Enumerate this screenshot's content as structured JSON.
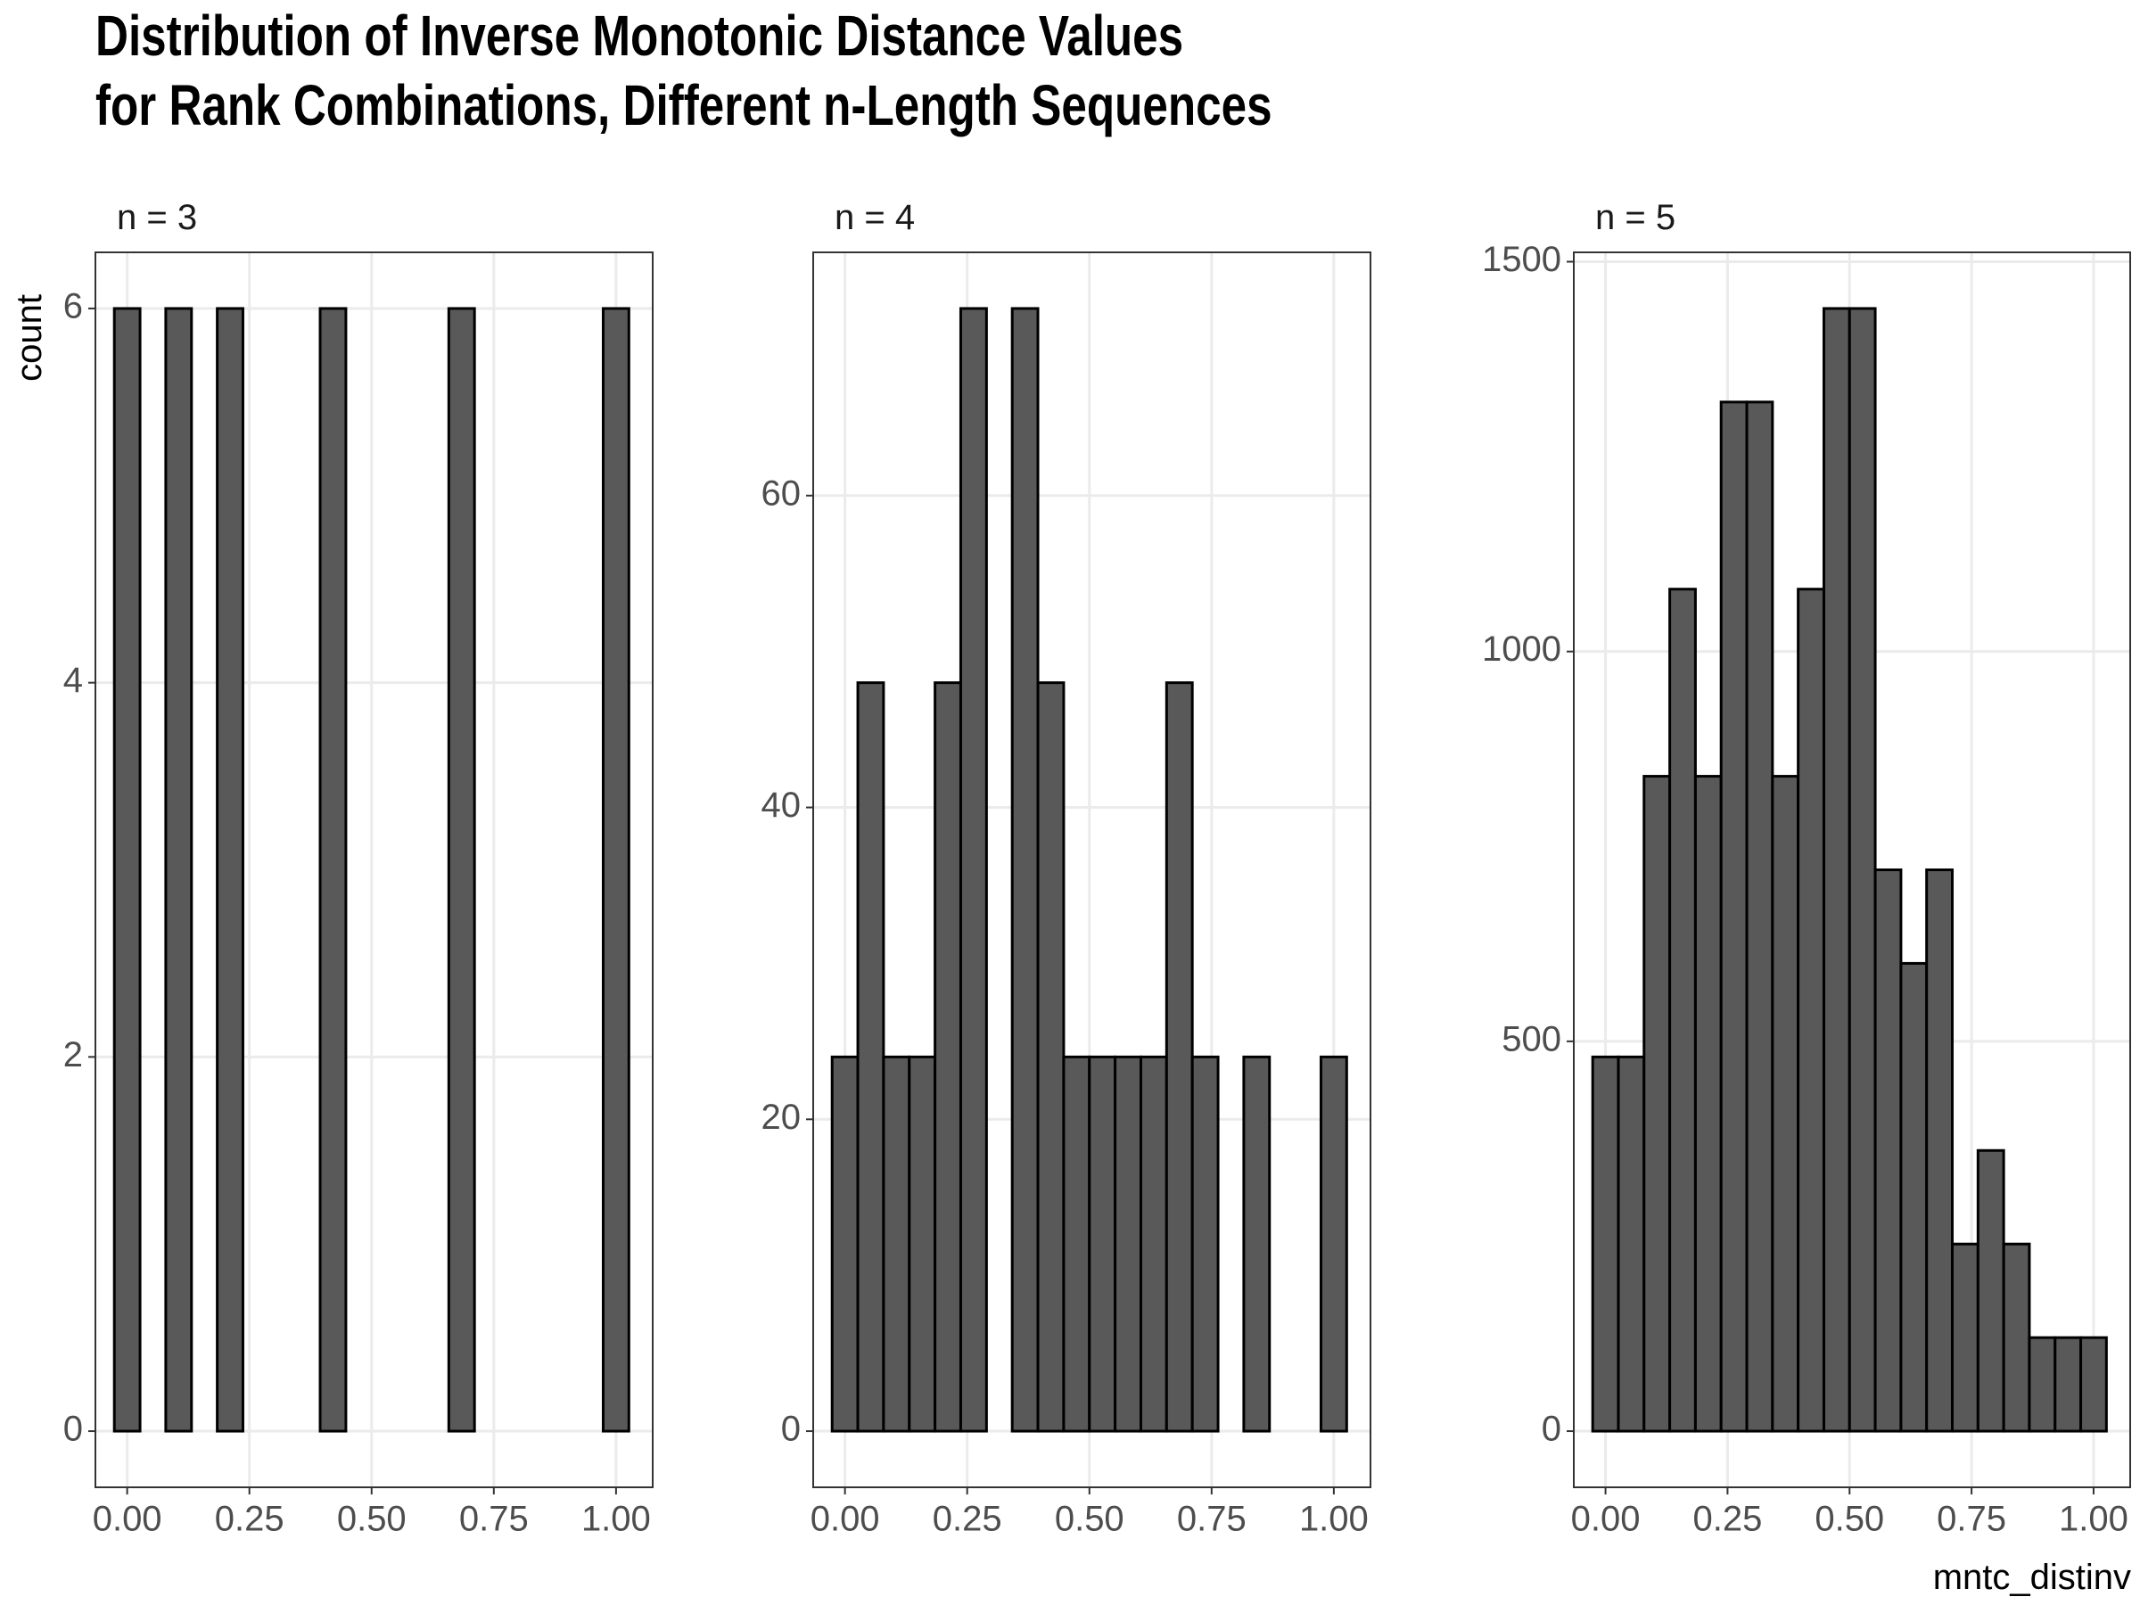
{
  "title": [
    "Distribution of Inverse Monotonic Distance Values",
    "for Rank Combinations, Different n-Length Sequences"
  ],
  "ylabel": "count",
  "xlabel": "mntc_distinv",
  "chart_data": [
    {
      "type": "histogram",
      "subtitle": "n = 3",
      "color": "#595959",
      "edgecolor": "#000000",
      "grid": true,
      "bins": [
        -0.0263,
        0.0263,
        0.0789,
        0.1316,
        0.1842,
        0.2368,
        0.2895,
        0.3421,
        0.3947,
        0.4474,
        0.5,
        0.5526,
        0.6053,
        0.6579,
        0.7105,
        0.7632,
        0.8158,
        0.8684,
        0.9211,
        0.9737,
        1.0263
      ],
      "values": [
        6,
        0,
        6,
        0,
        6,
        0,
        0,
        0,
        6,
        0,
        0,
        0,
        0,
        6,
        0,
        0,
        0,
        0,
        0,
        6
      ],
      "xlim": [
        -0.065,
        1.075
      ],
      "xticks": [
        {
          "value": 0,
          "label": "0.00"
        },
        0.25,
        {
          "value": 0.5,
          "label": "0.50"
        },
        0.75,
        {
          "value": 1,
          "label": "1.00"
        }
      ],
      "ylim": [
        -0.3,
        6.3
      ],
      "yticks": [
        0,
        2,
        4,
        6
      ]
    },
    {
      "type": "histogram",
      "subtitle": "n = 4",
      "color": "#595959",
      "edgecolor": "#000000",
      "grid": true,
      "bins": [
        -0.0263,
        0.0263,
        0.0789,
        0.1316,
        0.1842,
        0.2368,
        0.2895,
        0.3421,
        0.3947,
        0.4474,
        0.5,
        0.5526,
        0.6053,
        0.6579,
        0.7105,
        0.7632,
        0.8158,
        0.8684,
        0.9211,
        0.9737,
        1.0263
      ],
      "values": [
        24,
        48,
        24,
        24,
        48,
        72,
        0,
        72,
        48,
        24,
        24,
        24,
        24,
        48,
        24,
        0,
        24,
        0,
        0,
        24
      ],
      "xlim": [
        -0.065,
        1.075
      ],
      "xticks": [
        {
          "value": 0,
          "label": "0.00"
        },
        0.25,
        {
          "value": 0.5,
          "label": "0.50"
        },
        0.75,
        {
          "value": 1,
          "label": "1.00"
        }
      ],
      "ylim": [
        -3.6,
        75.6
      ],
      "yticks": [
        0,
        20,
        40,
        60
      ]
    },
    {
      "type": "histogram",
      "subtitle": "n = 5",
      "color": "#595959",
      "edgecolor": "#000000",
      "grid": true,
      "bins": [
        -0.0263,
        0.0263,
        0.0789,
        0.1316,
        0.1842,
        0.2368,
        0.2895,
        0.3421,
        0.3947,
        0.4474,
        0.5,
        0.5526,
        0.6053,
        0.6579,
        0.7105,
        0.7632,
        0.8158,
        0.8684,
        0.9211,
        0.9737,
        1.0263
      ],
      "values": [
        480,
        480,
        840,
        1080,
        840,
        1320,
        1320,
        840,
        1080,
        1440,
        1440,
        720,
        600,
        720,
        240,
        360,
        240,
        120,
        120,
        120
      ],
      "xlim": [
        -0.065,
        1.075
      ],
      "xticks": [
        {
          "value": 0,
          "label": "0.00"
        },
        0.25,
        {
          "value": 0.5,
          "label": "0.50"
        },
        0.75,
        {
          "value": 1,
          "label": "1.00"
        }
      ],
      "ylim": [
        -72,
        1512
      ],
      "yticks": [
        0,
        500,
        1000,
        1500
      ]
    }
  ]
}
